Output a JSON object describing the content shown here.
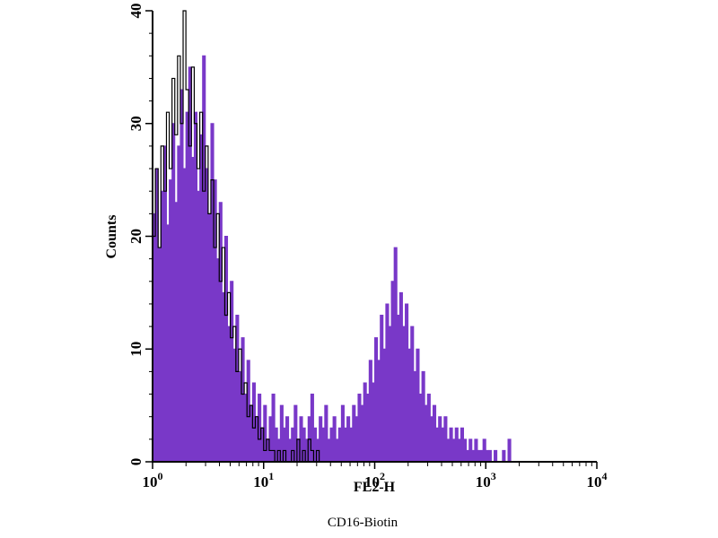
{
  "caption": "CD16-Biotin",
  "chart_data": {
    "type": "histogram",
    "title": "",
    "xlabel": "FL2-H",
    "ylabel": "Counts",
    "x_scale": "log10",
    "x_range_log10": [
      0,
      4
    ],
    "x_tick_exponents": [
      0,
      1,
      2,
      3,
      4
    ],
    "x_tick_base": "10",
    "ylim": [
      0,
      40
    ],
    "y_major_ticks": [
      0,
      10,
      20,
      30,
      40
    ],
    "y_minor_tick_step": 2,
    "bins_per_decade": 40,
    "grid": "off",
    "legend": "none",
    "colors": {
      "filled_series": "#7938c8",
      "open_series": "#000000",
      "axis": "#000000",
      "background": "#ffffff"
    },
    "series": [
      {
        "name": "filled-purple-histogram",
        "style": "filled",
        "color": "#7938c8",
        "values": [
          22,
          26,
          19,
          24,
          28,
          21,
          25,
          30,
          23,
          28,
          33,
          26,
          31,
          35,
          27,
          31,
          24,
          29,
          36,
          26,
          22,
          30,
          25,
          18,
          23,
          15,
          20,
          12,
          16,
          10,
          13,
          8,
          11,
          6,
          9,
          5,
          7,
          4,
          6,
          3,
          5,
          2,
          4,
          6,
          3,
          2,
          5,
          3,
          4,
          2,
          3,
          5,
          2,
          4,
          3,
          2,
          4,
          6,
          3,
          2,
          4,
          3,
          5,
          2,
          3,
          4,
          2,
          3,
          5,
          3,
          4,
          3,
          5,
          4,
          6,
          5,
          7,
          6,
          9,
          7,
          11,
          9,
          13,
          10,
          14,
          12,
          16,
          19,
          13,
          15,
          12,
          14,
          10,
          12,
          8,
          10,
          6,
          8,
          5,
          6,
          4,
          5,
          3,
          4,
          3,
          4,
          2,
          3,
          2,
          3,
          2,
          3,
          2,
          1,
          2,
          1,
          2,
          1,
          1,
          2,
          1,
          1,
          0,
          1,
          0,
          0,
          1,
          0,
          2,
          0,
          0,
          0,
          0,
          0,
          0,
          0,
          0,
          0,
          0,
          0,
          0,
          0,
          0,
          0,
          0,
          0,
          0,
          0,
          0,
          0,
          0,
          0,
          0,
          0,
          0,
          0,
          0,
          0,
          0,
          0
        ]
      },
      {
        "name": "black-outline-histogram",
        "style": "open",
        "color": "#000000",
        "values": [
          20,
          26,
          19,
          28,
          24,
          31,
          26,
          34,
          29,
          36,
          30,
          40,
          33,
          28,
          35,
          30,
          26,
          31,
          24,
          28,
          22,
          25,
          19,
          22,
          16,
          19,
          13,
          15,
          11,
          12,
          8,
          10,
          6,
          7,
          4,
          5,
          3,
          4,
          2,
          3,
          1,
          2,
          1,
          1,
          0,
          1,
          0,
          1,
          0,
          0,
          1,
          0,
          2,
          0,
          1,
          0,
          2,
          1,
          0,
          1,
          0,
          0,
          0,
          0,
          0,
          0,
          0,
          0,
          0,
          0,
          0,
          0,
          0,
          0,
          0,
          0,
          0,
          0,
          0,
          0,
          0,
          0,
          0,
          0,
          0,
          0,
          0,
          0,
          0,
          0,
          0,
          0,
          0,
          0,
          0,
          0,
          0,
          0,
          0,
          0,
          0,
          0,
          0,
          0,
          0,
          0,
          0,
          0,
          0,
          0,
          0,
          0,
          0,
          0,
          0,
          0,
          0,
          0,
          0,
          0,
          0,
          0,
          0,
          0,
          0,
          0,
          0,
          0,
          0,
          0,
          0,
          0,
          0,
          0,
          0,
          0,
          0,
          0,
          0,
          0,
          0,
          0,
          0,
          0,
          0,
          0,
          0,
          0,
          0,
          0,
          0,
          0,
          0,
          0,
          0,
          0,
          0,
          0,
          0,
          0
        ]
      }
    ]
  }
}
